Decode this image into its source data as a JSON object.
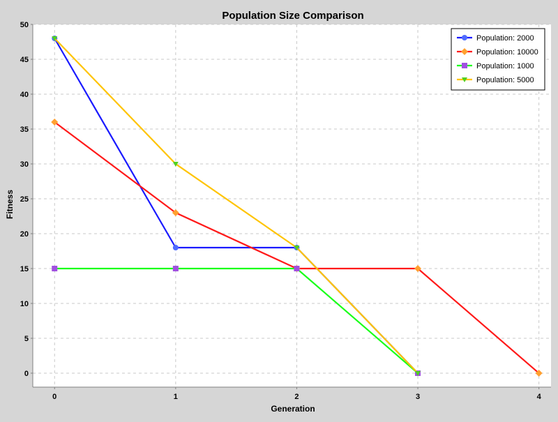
{
  "chart_data": {
    "type": "line",
    "title": "Population Size Comparison",
    "xlabel": "Generation",
    "ylabel": "Fitness",
    "xlim": [
      -0.18,
      4.1
    ],
    "ylim": [
      -2,
      50
    ],
    "x_ticks": [
      0,
      1,
      2,
      3,
      4
    ],
    "y_ticks": [
      0,
      5,
      10,
      15,
      20,
      25,
      30,
      35,
      40,
      45,
      50
    ],
    "grid": true,
    "legend_position": "top-right",
    "background_color": "#d6d6d6",
    "plot_background_color": "#ffffff",
    "grid_color": "#c8c8c8",
    "series": [
      {
        "name": "Population: 2000",
        "color": "#1a1aff",
        "marker": "circle",
        "marker_color": "#4f6bff",
        "x": [
          0,
          1,
          2,
          3
        ],
        "y": [
          48,
          18,
          18,
          0
        ]
      },
      {
        "name": "Population: 10000",
        "color": "#ff1a1a",
        "marker": "diamond",
        "marker_color": "#ffa030",
        "x": [
          0,
          1,
          2,
          3,
          4
        ],
        "y": [
          36,
          23,
          15,
          15,
          0
        ]
      },
      {
        "name": "Population: 1000",
        "color": "#1aff1a",
        "marker": "square",
        "marker_color": "#a050e0",
        "x": [
          0,
          1,
          2,
          3
        ],
        "y": [
          15,
          15,
          15,
          0
        ]
      },
      {
        "name": "Population: 5000",
        "color": "#ffc400",
        "marker": "triangle-down",
        "marker_color": "#50d020",
        "x": [
          0,
          1,
          2,
          3
        ],
        "y": [
          48,
          30,
          18,
          0
        ]
      }
    ]
  }
}
